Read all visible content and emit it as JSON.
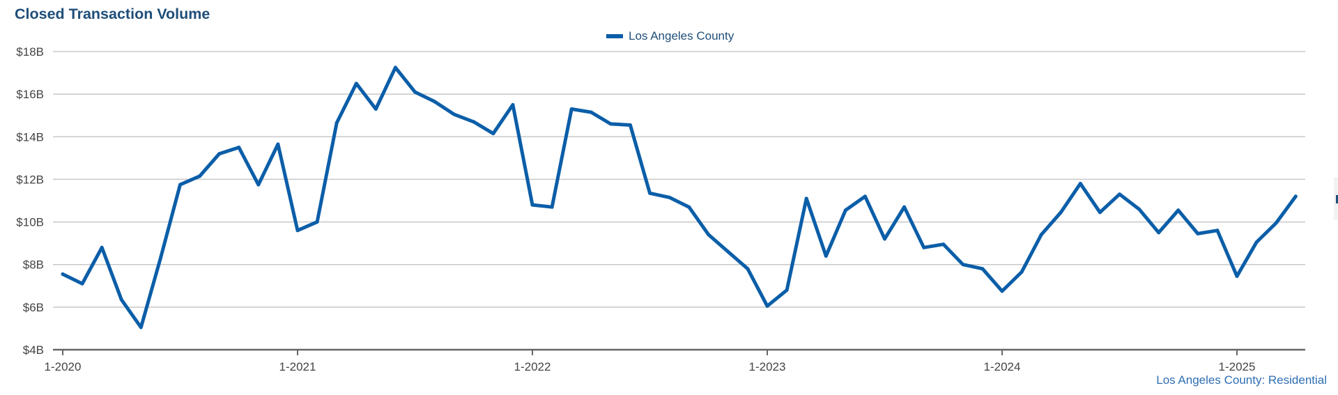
{
  "chart_data": {
    "type": "line",
    "title": "Closed Transaction Volume",
    "legend_position": "top-center",
    "grid": true,
    "color": "#0b5ea8",
    "ylim": [
      4,
      18
    ],
    "y_ticks": [
      "$4B",
      "$6B",
      "$8B",
      "$10B",
      "$12B",
      "$14B",
      "$16B",
      "$18B"
    ],
    "x_ticks": [
      "1-2020",
      "1-2021",
      "1-2022",
      "1-2023",
      "1-2024",
      "1-2025"
    ],
    "series": [
      {
        "name": "Los Angeles County",
        "x": [
          "2020-01",
          "2020-02",
          "2020-03",
          "2020-04",
          "2020-05",
          "2020-06",
          "2020-07",
          "2020-08",
          "2020-09",
          "2020-10",
          "2020-11",
          "2020-12",
          "2021-01",
          "2021-02",
          "2021-03",
          "2021-04",
          "2021-05",
          "2021-06",
          "2021-07",
          "2021-08",
          "2021-09",
          "2021-10",
          "2021-11",
          "2021-12",
          "2022-01",
          "2022-02",
          "2022-03",
          "2022-04",
          "2022-05",
          "2022-06",
          "2022-07",
          "2022-08",
          "2022-09",
          "2022-10",
          "2022-11",
          "2022-12",
          "2023-01",
          "2023-02",
          "2023-03",
          "2023-04",
          "2023-05",
          "2023-06",
          "2023-07",
          "2023-08",
          "2023-09",
          "2023-10",
          "2023-11",
          "2023-12",
          "2024-01",
          "2024-02",
          "2024-03",
          "2024-04",
          "2024-05",
          "2024-06",
          "2024-07",
          "2024-08",
          "2024-09",
          "2024-10",
          "2024-11",
          "2024-12",
          "2025-01",
          "2025-02",
          "2025-03",
          "2025-04"
        ],
        "values": [
          7.55,
          7.1,
          8.8,
          6.35,
          5.05,
          8.3,
          11.75,
          12.15,
          13.2,
          13.5,
          11.75,
          13.65,
          9.6,
          10.0,
          14.65,
          16.5,
          15.3,
          17.25,
          16.1,
          15.65,
          15.05,
          14.7,
          14.15,
          15.5,
          10.8,
          10.7,
          15.3,
          15.15,
          14.6,
          14.55,
          11.35,
          11.15,
          10.7,
          9.4,
          8.6,
          7.8,
          6.05,
          6.8,
          11.1,
          8.4,
          10.55,
          11.2,
          9.2,
          10.7,
          8.8,
          8.95,
          8.0,
          7.8,
          6.75,
          7.65,
          9.4,
          10.45,
          11.8,
          10.45,
          11.3,
          10.6,
          9.5,
          10.55,
          9.45,
          9.6,
          7.45,
          9.05,
          9.95,
          11.2
        ]
      }
    ]
  },
  "footer": {
    "note": "Los Angeles County: Residential"
  }
}
